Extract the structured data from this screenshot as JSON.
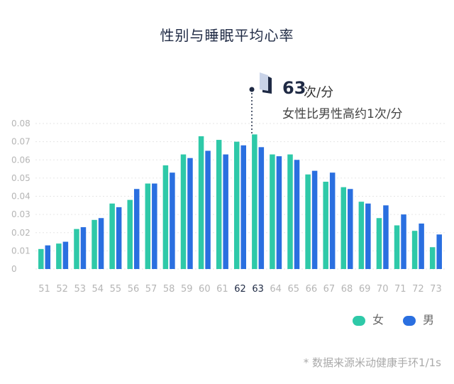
{
  "title": "性别与睡眠平均心率",
  "callout": {
    "value": "63",
    "unit": "次/分",
    "note": "女性比男性高约1次/分"
  },
  "legend": [
    {
      "name": "女",
      "color": "#2ec9a8"
    },
    {
      "name": "男",
      "color": "#2a6fe0"
    }
  ],
  "footnote": "* 数据来源米动健康手环1/1s",
  "chart_data": {
    "type": "bar",
    "title": "性别与睡眠平均心率",
    "xlabel": "",
    "ylabel": "",
    "ylim": [
      0,
      0.08
    ],
    "yticks": [
      "0",
      "0.01",
      "0.02",
      "0.03",
      "0.04",
      "0.05",
      "0.06",
      "0.07",
      "0.08"
    ],
    "grid": true,
    "legend_position": "bottom-right",
    "categories": [
      "51",
      "52",
      "53",
      "54",
      "55",
      "56",
      "57",
      "58",
      "59",
      "60",
      "61",
      "62",
      "63",
      "64",
      "65",
      "66",
      "67",
      "68",
      "69",
      "70",
      "71",
      "72",
      "73"
    ],
    "highlight_categories": [
      "62",
      "63"
    ],
    "series": [
      {
        "name": "女",
        "color": "#2ec9a8",
        "values": [
          0.011,
          0.014,
          0.022,
          0.027,
          0.036,
          0.038,
          0.047,
          0.057,
          0.063,
          0.073,
          0.071,
          0.07,
          0.074,
          0.063,
          0.063,
          0.052,
          0.048,
          0.045,
          0.037,
          0.028,
          0.024,
          0.021,
          0.012
        ]
      },
      {
        "name": "男",
        "color": "#2a6fe0",
        "values": [
          0.013,
          0.015,
          0.023,
          0.028,
          0.034,
          0.044,
          0.047,
          0.053,
          0.061,
          0.065,
          0.063,
          0.068,
          0.067,
          0.062,
          0.06,
          0.054,
          0.053,
          0.044,
          0.036,
          0.035,
          0.03,
          0.025,
          0.019
        ]
      }
    ]
  }
}
